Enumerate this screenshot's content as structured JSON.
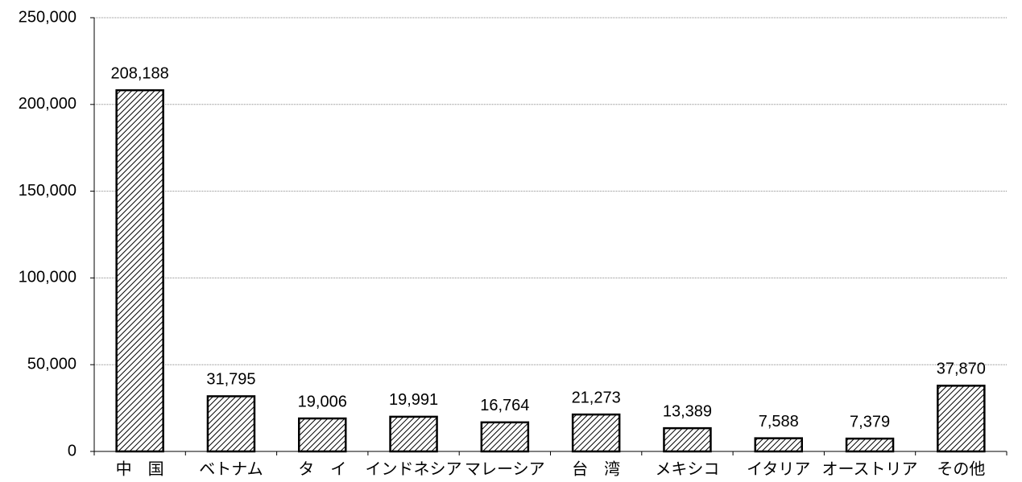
{
  "chart_data": {
    "type": "bar",
    "categories": [
      "中　国",
      "ベトナム",
      "タ　イ",
      "インドネシア",
      "マレーシア",
      "台　湾",
      "メキシコ",
      "イタリア",
      "オーストリア",
      "その他"
    ],
    "values": [
      208188,
      31795,
      19006,
      19991,
      16764,
      21273,
      13389,
      7588,
      7379,
      37870
    ],
    "value_labels": [
      "208,188",
      "31,795",
      "19,006",
      "19,991",
      "16,764",
      "21,273",
      "13,389",
      "7,588",
      "7,379",
      "37,870"
    ],
    "color": "#000000",
    "ylim": [
      0,
      250000
    ],
    "yticks": [
      0,
      {
        "value": 50000,
        "label": "50,000"
      },
      {
        "value": 100000,
        "label": "100,000"
      },
      {
        "value": 150000,
        "label": "150,000"
      },
      {
        "value": 200000,
        "label": "200,000"
      },
      {
        "value": 250000,
        "label": "250,000"
      }
    ],
    "grid": true
  }
}
